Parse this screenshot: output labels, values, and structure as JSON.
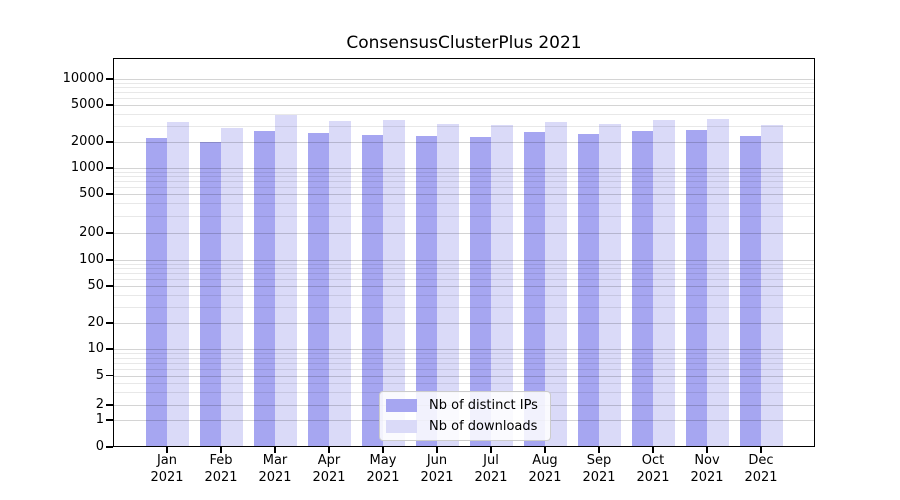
{
  "title": "ConsensusClusterPlus 2021",
  "colors": {
    "bar_ips": "#a6a6f1",
    "bar_downloads": "#dadaf8",
    "grid_major": "rgba(0,0,0,0.17)",
    "grid_minor": "rgba(0,0,0,0.09)",
    "axis": "#000000",
    "legend_border": "#cccccc",
    "legend_bg": "rgba(255,255,255,0.85)"
  },
  "legend": {
    "items": [
      {
        "key": "ips",
        "label": "Nb of distinct IPs"
      },
      {
        "key": "downloads",
        "label": "Nb of downloads"
      }
    ],
    "position": "lower center"
  },
  "axes": {
    "y": {
      "scale": "log (1-2-5 ticks, 0 baseline)",
      "ticks": [
        {
          "v": 10000,
          "label": "10000"
        },
        {
          "v": 5000,
          "label": "5000"
        },
        {
          "v": 2000,
          "label": "2000"
        },
        {
          "v": 1000,
          "label": "1000"
        },
        {
          "v": 500,
          "label": "500"
        },
        {
          "v": 200,
          "label": "200"
        },
        {
          "v": 100,
          "label": "100"
        },
        {
          "v": 50,
          "label": "50"
        },
        {
          "v": 20,
          "label": "20"
        },
        {
          "v": 10,
          "label": "10"
        },
        {
          "v": 5,
          "label": "5"
        },
        {
          "v": 2,
          "label": "2"
        },
        {
          "v": 1,
          "label": "1"
        },
        {
          "v": 0,
          "label": "0"
        }
      ]
    },
    "x": {
      "months": [
        {
          "month": "Jan",
          "year": "2021"
        },
        {
          "month": "Feb",
          "year": "2021"
        },
        {
          "month": "Mar",
          "year": "2021"
        },
        {
          "month": "Apr",
          "year": "2021"
        },
        {
          "month": "May",
          "year": "2021"
        },
        {
          "month": "Jun",
          "year": "2021"
        },
        {
          "month": "Jul",
          "year": "2021"
        },
        {
          "month": "Aug",
          "year": "2021"
        },
        {
          "month": "Sep",
          "year": "2021"
        },
        {
          "month": "Oct",
          "year": "2021"
        },
        {
          "month": "Nov",
          "year": "2021"
        },
        {
          "month": "Dec",
          "year": "2021"
        }
      ]
    }
  },
  "chart_data": {
    "type": "bar",
    "title": "ConsensusClusterPlus 2021",
    "xlabel": "",
    "ylabel": "",
    "categories": [
      "Jan 2021",
      "Feb 2021",
      "Mar 2021",
      "Apr 2021",
      "May 2021",
      "Jun 2021",
      "Jul 2021",
      "Aug 2021",
      "Sep 2021",
      "Oct 2021",
      "Nov 2021",
      "Dec 2021"
    ],
    "series": [
      {
        "name": "Nb of distinct IPs",
        "values": [
          2200,
          2010,
          2640,
          2520,
          2350,
          2330,
          2280,
          2560,
          2450,
          2600,
          2660,
          2300
        ]
      },
      {
        "name": "Nb of downloads",
        "values": [
          3300,
          2840,
          3910,
          3380,
          3430,
          3140,
          3060,
          3270,
          3140,
          3460,
          3550,
          3010
        ]
      }
    ],
    "yscale": "log",
    "yticks": [
      10000,
      5000,
      2000,
      1000,
      500,
      200,
      100,
      50,
      20,
      10,
      5,
      2,
      1,
      0
    ],
    "ylim": [
      0,
      17000
    ],
    "grid": "horizontal only, minor log gridlines, drawn over bars",
    "legend_position": "lower center"
  }
}
